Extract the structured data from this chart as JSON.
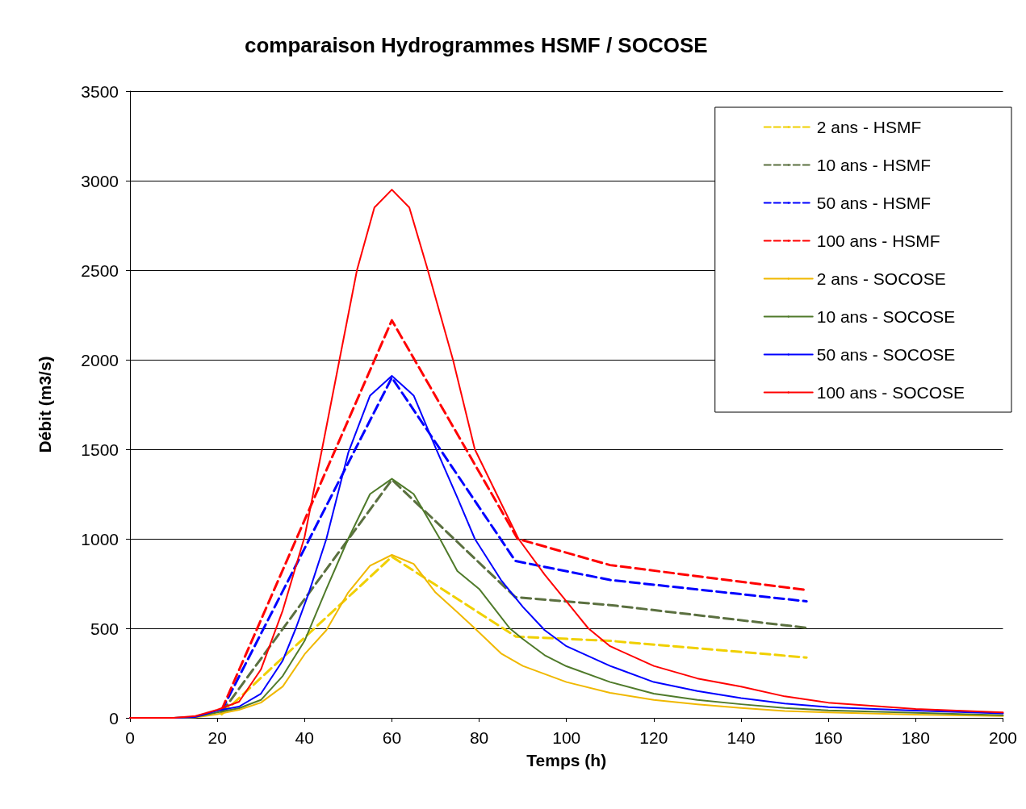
{
  "chart_data": {
    "type": "line",
    "title": "comparaison Hydrogrammes HSMF / SOCOSE",
    "xlabel": "Temps (h)",
    "ylabel": "Débit (m3/s)",
    "xlim": [
      0,
      200
    ],
    "xticks": [
      0,
      20,
      40,
      60,
      80,
      100,
      120,
      140,
      160,
      180,
      200
    ],
    "ylim": [
      0,
      3500
    ],
    "yticks": [
      0,
      500,
      1000,
      1500,
      2000,
      2500,
      3000,
      3500
    ],
    "grid": "y",
    "legend": "top right",
    "marker": "none",
    "series": [
      {
        "name": "2 ans - HSMF",
        "color": "#f0d000",
        "line_style": "dashed",
        "x": [
          21,
          60,
          88.4,
          110,
          155
        ],
        "values": [
          20,
          900,
          454,
          430,
          337
        ]
      },
      {
        "name": "10 ans - HSMF",
        "color": "#5b7040",
        "line_style": "dashed",
        "x": [
          21,
          60,
          88.3,
          110,
          155
        ],
        "values": [
          30,
          1330,
          674,
          630,
          503
        ]
      },
      {
        "name": "50 ans - HSMF",
        "color": "#0000ff",
        "line_style": "dashed",
        "x": [
          21,
          60,
          88.3,
          110,
          155
        ],
        "values": [
          40,
          1900,
          876,
          770,
          651
        ]
      },
      {
        "name": "100 ans - HSMF",
        "color": "#ff0000",
        "line_style": "dashed",
        "x": [
          21,
          60,
          88.8,
          110,
          155
        ],
        "values": [
          45,
          2220,
          1000,
          853,
          714
        ]
      },
      {
        "name": "2 ans - SOCOSE",
        "color": "#f0b800",
        "line_style": "solid",
        "x": [
          0,
          10,
          15,
          20,
          25,
          30,
          35,
          40,
          45,
          50,
          55,
          60,
          65,
          70,
          75,
          79,
          85,
          90,
          100,
          110,
          120,
          130,
          140,
          150,
          160,
          180,
          200
        ],
        "values": [
          0,
          0,
          3,
          20,
          45,
          85,
          175,
          355,
          490,
          700,
          850,
          910,
          860,
          700,
          590,
          500,
          360,
          290,
          200,
          140,
          100,
          75,
          55,
          38,
          30,
          18,
          10
        ]
      },
      {
        "name": "10 ans - SOCOSE",
        "color": "#4f7a2a",
        "line_style": "solid",
        "x": [
          0,
          10,
          15,
          20,
          25,
          30,
          35,
          40,
          45,
          50,
          55,
          60,
          65,
          71,
          75,
          80,
          87,
          90,
          95,
          100,
          110,
          120,
          130,
          140,
          150,
          160,
          180,
          200
        ],
        "values": [
          0,
          0,
          5,
          30,
          54,
          100,
          234,
          430,
          720,
          1000,
          1250,
          1335,
          1250,
          1000,
          820,
          720,
          500,
          440,
          350,
          288,
          200,
          135,
          100,
          76,
          55,
          42,
          28,
          15
        ]
      },
      {
        "name": "50 ans - SOCOSE",
        "color": "#0000ff",
        "line_style": "solid",
        "x": [
          0,
          10,
          15,
          20,
          25,
          30,
          35,
          38,
          41,
          45,
          50,
          55,
          60,
          65,
          70,
          75,
          79,
          85,
          90,
          95,
          100,
          110,
          120,
          130,
          140,
          150,
          160,
          180,
          200
        ],
        "values": [
          0,
          0,
          5,
          40,
          63,
          135,
          320,
          500,
          700,
          1000,
          1480,
          1800,
          1910,
          1800,
          1510,
          1230,
          1000,
          770,
          620,
          490,
          400,
          290,
          200,
          150,
          110,
          80,
          60,
          40,
          25
        ]
      },
      {
        "name": "100 ans - SOCOSE",
        "color": "#ff0000",
        "line_style": "solid",
        "x": [
          0,
          10,
          15,
          20,
          25,
          30,
          35,
          40,
          44,
          48,
          52,
          56,
          60,
          64,
          68,
          74,
          79,
          84,
          89,
          95,
          100,
          105,
          110,
          120,
          130,
          140,
          150,
          160,
          180,
          200
        ],
        "values": [
          0,
          0,
          10,
          45,
          90,
          270,
          600,
          1010,
          1500,
          2000,
          2500,
          2850,
          2950,
          2850,
          2520,
          2000,
          1500,
          1250,
          1000,
          800,
          650,
          500,
          400,
          290,
          220,
          175,
          120,
          85,
          50,
          30
        ]
      }
    ]
  }
}
